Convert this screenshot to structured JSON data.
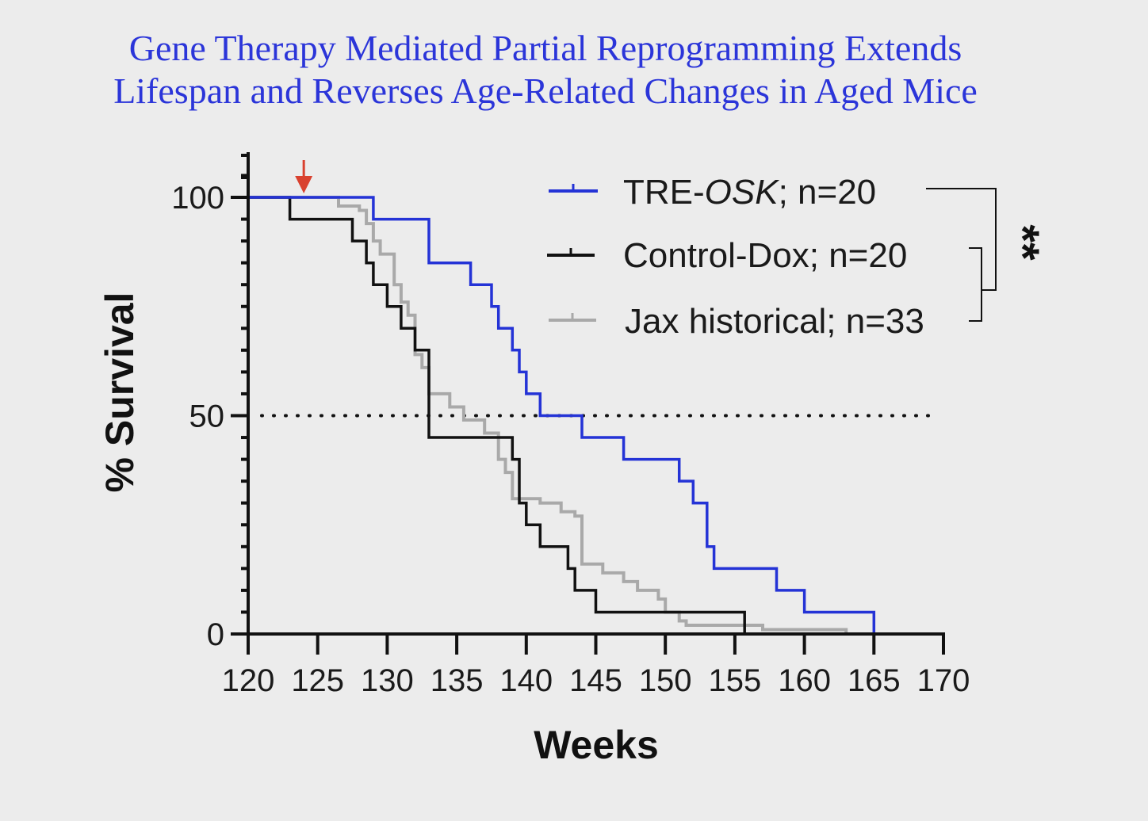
{
  "title": {
    "line1": "Gene Therapy Mediated Partial Reprogramming Extends",
    "line2": "Lifespan and Reverses Age-Related Changes in Aged Mice"
  },
  "colors": {
    "title": "#2b35d9",
    "tre_osk": "#2433d6",
    "control_dox": "#111111",
    "jax_historical": "#a9a9a9",
    "treatment_arrow": "#d9412f"
  },
  "chart_data": {
    "type": "line",
    "subtype": "kaplan-meier-survival",
    "xlabel": "Weeks",
    "ylabel": "% Survival",
    "xlim": [
      120,
      170
    ],
    "ylim": [
      0,
      100
    ],
    "xticks": [
      "120",
      "125",
      "130",
      "135",
      "140",
      "145",
      "150",
      "155",
      "160",
      "165",
      "170"
    ],
    "yticks": [
      "0",
      "50",
      "100"
    ],
    "reference_line": {
      "y": 50,
      "style": "dotted"
    },
    "treatment_start_marker": {
      "x": 124,
      "shape": "down-arrow"
    },
    "legend_position": "top-right",
    "significance": "**",
    "series": [
      {
        "name_main": "TRE-",
        "name_italic": "OSK",
        "name_rest": "; n=20",
        "steps": [
          [
            120,
            100
          ],
          [
            129,
            100
          ],
          [
            129,
            95
          ],
          [
            133,
            95
          ],
          [
            133,
            85
          ],
          [
            136,
            85
          ],
          [
            136,
            80
          ],
          [
            137.5,
            80
          ],
          [
            137.5,
            75
          ],
          [
            138,
            75
          ],
          [
            138,
            70
          ],
          [
            139,
            70
          ],
          [
            139,
            65
          ],
          [
            139.5,
            65
          ],
          [
            139.5,
            60
          ],
          [
            140,
            60
          ],
          [
            140,
            55
          ],
          [
            141,
            55
          ],
          [
            141,
            50
          ],
          [
            144,
            50
          ],
          [
            144,
            45
          ],
          [
            147,
            45
          ],
          [
            147,
            40
          ],
          [
            151,
            40
          ],
          [
            151,
            35
          ],
          [
            152,
            35
          ],
          [
            152,
            30
          ],
          [
            153,
            30
          ],
          [
            153,
            20
          ],
          [
            153.5,
            20
          ],
          [
            153.5,
            15
          ],
          [
            158,
            15
          ],
          [
            158,
            10
          ],
          [
            160,
            10
          ],
          [
            160,
            5
          ],
          [
            165,
            5
          ],
          [
            165,
            0
          ]
        ]
      },
      {
        "name": "Control-Dox; n=20",
        "steps": [
          [
            120,
            100
          ],
          [
            123,
            100
          ],
          [
            123,
            95
          ],
          [
            127.5,
            95
          ],
          [
            127.5,
            90
          ],
          [
            128.5,
            90
          ],
          [
            128.5,
            85
          ],
          [
            129,
            85
          ],
          [
            129,
            80
          ],
          [
            130,
            80
          ],
          [
            130,
            75
          ],
          [
            131,
            75
          ],
          [
            131,
            70
          ],
          [
            132,
            70
          ],
          [
            132,
            65
          ],
          [
            133,
            65
          ],
          [
            133,
            45
          ],
          [
            139,
            45
          ],
          [
            139,
            40
          ],
          [
            139.5,
            40
          ],
          [
            139.5,
            30
          ],
          [
            140,
            30
          ],
          [
            140,
            25
          ],
          [
            141,
            25
          ],
          [
            141,
            20
          ],
          [
            143,
            20
          ],
          [
            143,
            15
          ],
          [
            143.5,
            15
          ],
          [
            143.5,
            10
          ],
          [
            145,
            10
          ],
          [
            145,
            5
          ],
          [
            155.7,
            5
          ],
          [
            155.7,
            0
          ]
        ]
      },
      {
        "name": "Jax historical; n=33",
        "steps": [
          [
            120,
            100
          ],
          [
            126.5,
            100
          ],
          [
            126.5,
            98
          ],
          [
            128,
            98
          ],
          [
            128,
            97
          ],
          [
            128.5,
            97
          ],
          [
            128.5,
            94
          ],
          [
            129,
            94
          ],
          [
            129,
            90
          ],
          [
            129.5,
            90
          ],
          [
            129.5,
            87
          ],
          [
            130.5,
            87
          ],
          [
            130.5,
            80
          ],
          [
            131,
            80
          ],
          [
            131,
            76
          ],
          [
            131.5,
            76
          ],
          [
            131.5,
            73
          ],
          [
            132,
            73
          ],
          [
            132,
            64
          ],
          [
            132.5,
            64
          ],
          [
            132.5,
            61
          ],
          [
            133,
            61
          ],
          [
            133,
            55
          ],
          [
            134.5,
            55
          ],
          [
            134.5,
            52
          ],
          [
            135.5,
            52
          ],
          [
            135.5,
            49
          ],
          [
            137,
            49
          ],
          [
            137,
            46
          ],
          [
            138,
            46
          ],
          [
            138,
            40
          ],
          [
            138.5,
            40
          ],
          [
            138.5,
            37
          ],
          [
            139,
            37
          ],
          [
            139,
            31
          ],
          [
            141,
            31
          ],
          [
            141,
            30
          ],
          [
            142.5,
            30
          ],
          [
            142.5,
            28
          ],
          [
            143.5,
            28
          ],
          [
            143.5,
            27
          ],
          [
            144,
            27
          ],
          [
            144,
            16
          ],
          [
            145.5,
            16
          ],
          [
            145.5,
            14
          ],
          [
            147,
            14
          ],
          [
            147,
            12
          ],
          [
            148,
            12
          ],
          [
            148,
            10
          ],
          [
            149.5,
            10
          ],
          [
            149.5,
            8
          ],
          [
            150,
            8
          ],
          [
            150,
            5
          ],
          [
            151,
            5
          ],
          [
            151,
            3
          ],
          [
            151.5,
            3
          ],
          [
            151.5,
            2
          ],
          [
            157,
            2
          ],
          [
            157,
            1
          ],
          [
            163,
            1
          ],
          [
            163,
            0
          ]
        ]
      }
    ]
  }
}
